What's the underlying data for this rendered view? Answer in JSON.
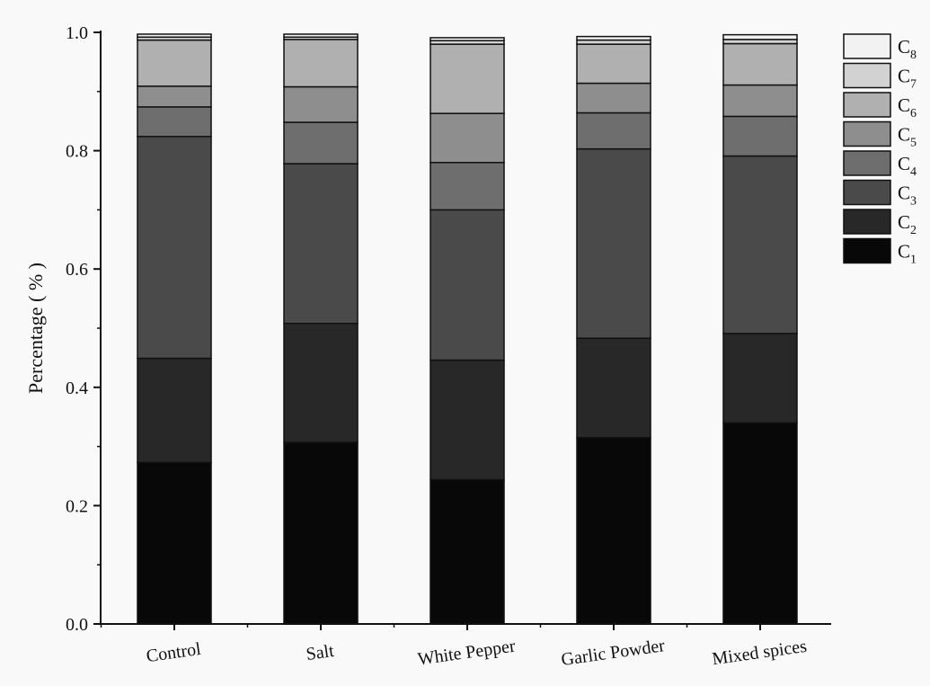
{
  "chart_data": {
    "type": "bar",
    "stacked": true,
    "title": "",
    "xlabel": "",
    "ylabel": "Percentage ( % )",
    "ylim": [
      0,
      1.0
    ],
    "yticks": [
      "0.0",
      "0.2",
      "0.4",
      "0.6",
      "0.8",
      "1.0"
    ],
    "categories": [
      "Control",
      "Salt",
      "White Pepper",
      "Garlic Powder",
      "Mixed spices"
    ],
    "series": [
      {
        "name": "C",
        "sub": "1",
        "color": "#080808",
        "values": [
          0.273,
          0.307,
          0.244,
          0.315,
          0.34
        ]
      },
      {
        "name": "C",
        "sub": "2",
        "color": "#282828",
        "values": [
          0.176,
          0.201,
          0.202,
          0.168,
          0.151
        ]
      },
      {
        "name": "C",
        "sub": "3",
        "color": "#4a4a4a",
        "values": [
          0.375,
          0.27,
          0.254,
          0.32,
          0.3
        ]
      },
      {
        "name": "C",
        "sub": "4",
        "color": "#6e6e6e",
        "values": [
          0.05,
          0.07,
          0.08,
          0.061,
          0.067
        ]
      },
      {
        "name": "C",
        "sub": "5",
        "color": "#8e8e8e",
        "values": [
          0.035,
          0.06,
          0.083,
          0.05,
          0.053
        ]
      },
      {
        "name": "C",
        "sub": "6",
        "color": "#b0b0b0",
        "values": [
          0.078,
          0.08,
          0.117,
          0.066,
          0.07
        ]
      },
      {
        "name": "C",
        "sub": "7",
        "color": "#d2d2d2",
        "values": [
          0.005,
          0.004,
          0.006,
          0.007,
          0.007
        ]
      },
      {
        "name": "C",
        "sub": "8",
        "color": "#f2f2f2",
        "values": [
          0.005,
          0.005,
          0.005,
          0.006,
          0.008
        ]
      }
    ],
    "legend_position": "right"
  }
}
